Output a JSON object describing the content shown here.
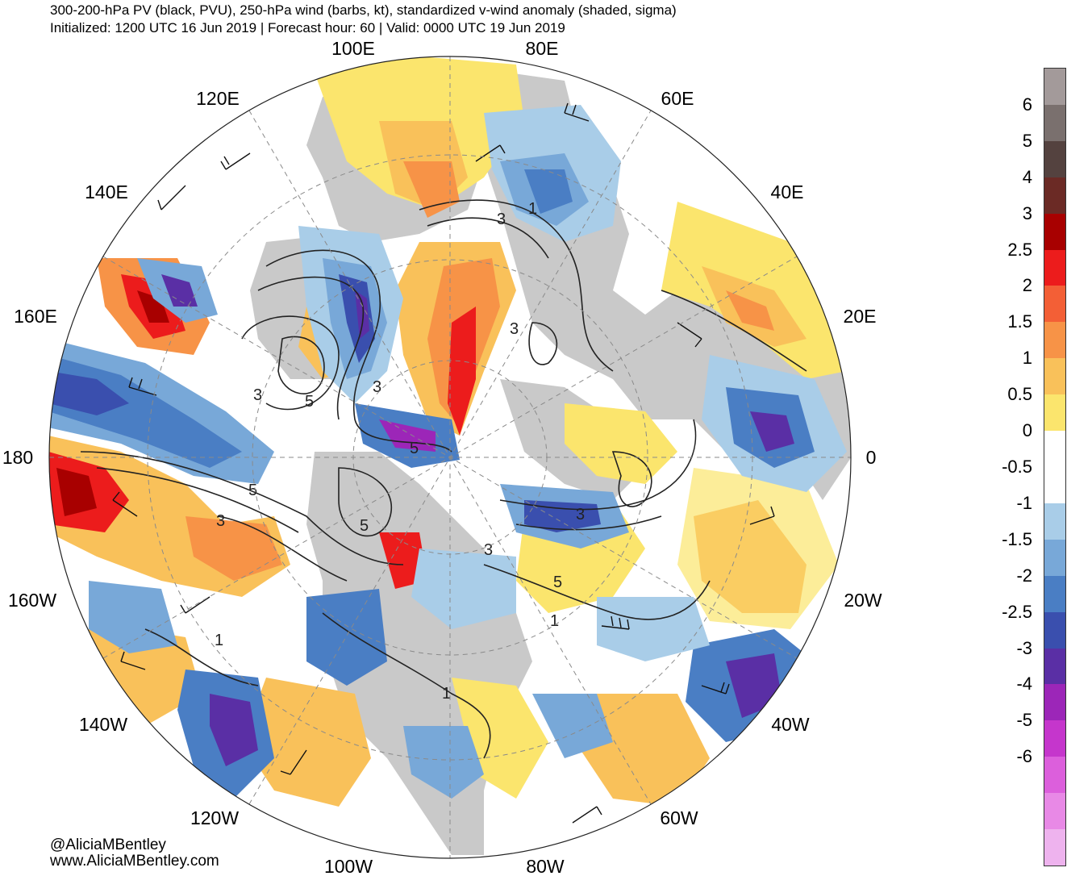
{
  "header": {
    "title": "300-200-hPa PV (black, PVU), 250-hPa wind (barbs, kt), standardized v-wind anomaly (shaded, sigma)",
    "subtitle": "Initialized: 1200 UTC 16 Jun 2019 | Forecast hour: 60 | Valid: 0000 UTC 19 Jun 2019"
  },
  "map": {
    "projection": "north-polar-stereographic",
    "longitude_labels": [
      "100E",
      "80E",
      "120E",
      "60E",
      "140E",
      "40E",
      "160E",
      "20E",
      "180",
      "0",
      "160W",
      "20W",
      "140W",
      "40W",
      "120W",
      "60W",
      "100W",
      "80W"
    ],
    "contour_labels": [
      "1",
      "3",
      "3",
      "5",
      "3",
      "3",
      "5",
      "5",
      "3",
      "5",
      "3",
      "3",
      "5",
      "1",
      "1",
      "1"
    ]
  },
  "colorbar": {
    "labels": [
      "6",
      "5",
      "4",
      "3",
      "2.5",
      "2",
      "1.5",
      "1",
      "0.5",
      "0",
      "-0.5",
      "-1",
      "-1.5",
      "-2",
      "-2.5",
      "-3",
      "-4",
      "-5",
      "-6"
    ],
    "colors": [
      "#a39a9a",
      "#7a706e",
      "#54423f",
      "#6b2a25",
      "#a80000",
      "#ec1c1c",
      "#f35f36",
      "#f79347",
      "#f9c15a",
      "#fbe56d",
      "#ffffff",
      "#ffffff",
      "#a9cde8",
      "#78a8d8",
      "#4a7ec4",
      "#3a4fae",
      "#5a2fa5",
      "#9c26b8",
      "#c536cc",
      "#dc5fdc",
      "#e889e6",
      "#eeb3ee"
    ]
  },
  "credits": {
    "handle": "@AliciaMBentley",
    "website": "www.AliciaMBentley.com"
  }
}
